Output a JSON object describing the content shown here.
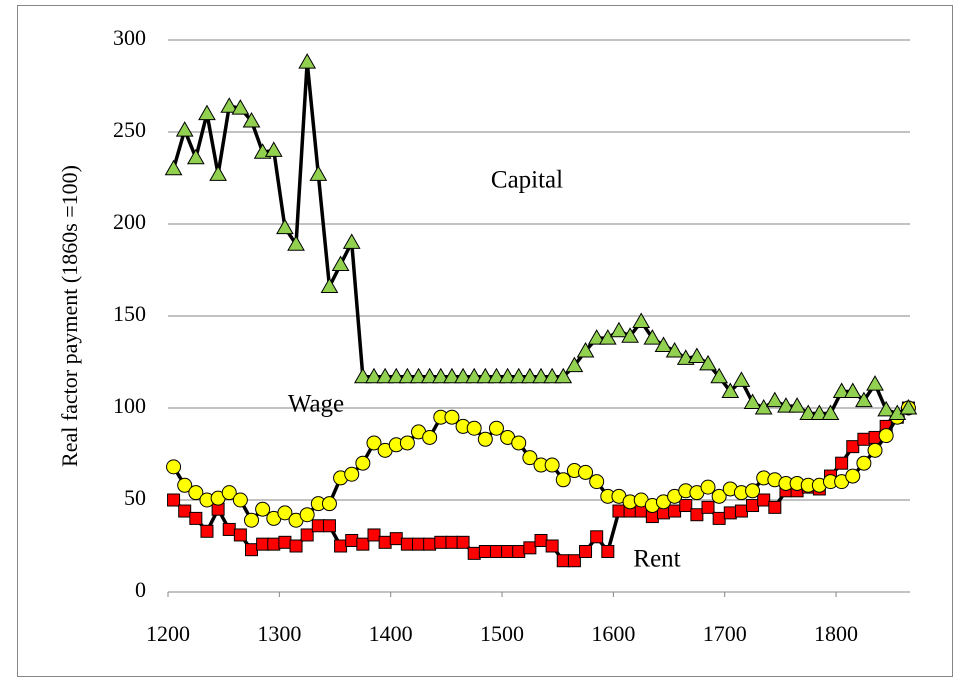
{
  "chart_data": {
    "type": "line",
    "y_label": "Real factor payment (1860s =100)",
    "annotations": [
      "Capital",
      "Wage",
      "Rent"
    ],
    "x": [
      1205,
      1215,
      1225,
      1235,
      1245,
      1255,
      1265,
      1275,
      1285,
      1295,
      1305,
      1315,
      1325,
      1335,
      1345,
      1355,
      1365,
      1375,
      1385,
      1395,
      1405,
      1415,
      1425,
      1435,
      1445,
      1455,
      1465,
      1475,
      1485,
      1495,
      1505,
      1515,
      1525,
      1535,
      1545,
      1555,
      1565,
      1575,
      1585,
      1595,
      1605,
      1615,
      1625,
      1635,
      1645,
      1655,
      1665,
      1675,
      1685,
      1695,
      1705,
      1715,
      1725,
      1735,
      1745,
      1755,
      1765,
      1775,
      1785,
      1795,
      1805,
      1815,
      1825,
      1835,
      1845,
      1855,
      1865
    ],
    "series": [
      {
        "name": "Capital",
        "color": "#92d050",
        "line_color": "#000000",
        "marker": "triangle",
        "values": [
          230,
          251,
          236,
          260,
          227,
          264,
          263,
          256,
          239,
          240,
          198,
          189,
          288,
          227,
          166,
          178,
          190,
          117,
          117,
          117,
          117,
          117,
          117,
          117,
          117,
          117,
          117,
          117,
          117,
          117,
          117,
          117,
          117,
          117,
          117,
          117,
          123,
          131,
          138,
          138,
          142,
          139,
          147,
          138,
          134,
          131,
          127,
          128,
          124,
          117,
          109,
          115,
          103,
          100,
          104,
          101,
          101,
          97,
          97,
          97,
          109,
          109,
          104,
          113,
          99,
          97,
          100
        ]
      },
      {
        "name": "Wage",
        "color": "#ffff00",
        "line_color": "#000000",
        "marker": "circle",
        "values": [
          68,
          58,
          54,
          50,
          51,
          54,
          50,
          39,
          45,
          40,
          43,
          39,
          42,
          48,
          48,
          62,
          64,
          70,
          81,
          77,
          80,
          81,
          87,
          84,
          95,
          95,
          90,
          89,
          83,
          89,
          84,
          81,
          73,
          69,
          69,
          61,
          66,
          65,
          60,
          52,
          52,
          49,
          50,
          47,
          49,
          52,
          55,
          54,
          57,
          52,
          56,
          54,
          55,
          62,
          61,
          59,
          59,
          58,
          58,
          60,
          60,
          63,
          70,
          77,
          85,
          95,
          100
        ]
      },
      {
        "name": "Rent",
        "color": "#ff0000",
        "line_color": "#000000",
        "marker": "square",
        "values": [
          50,
          44,
          40,
          33,
          45,
          34,
          31,
          23,
          26,
          26,
          27,
          25,
          31,
          36,
          36,
          25,
          28,
          26,
          31,
          27,
          29,
          26,
          26,
          26,
          27,
          27,
          27,
          21,
          22,
          22,
          22,
          22,
          24,
          28,
          25,
          17,
          17,
          22,
          30,
          22,
          44,
          44,
          44,
          41,
          43,
          44,
          47,
          42,
          46,
          40,
          43,
          44,
          47,
          50,
          46,
          55,
          55,
          57,
          56,
          63,
          70,
          79,
          83,
          84,
          90,
          95,
          100
        ]
      }
    ],
    "xlim": [
      1200,
      1870
    ],
    "xticks": [
      1200,
      1300,
      1400,
      1500,
      1600,
      1700,
      1800
    ],
    "ylim": [
      0,
      300
    ],
    "yticks": [
      0,
      50,
      100,
      150,
      200,
      250,
      300
    ],
    "grid": true
  }
}
